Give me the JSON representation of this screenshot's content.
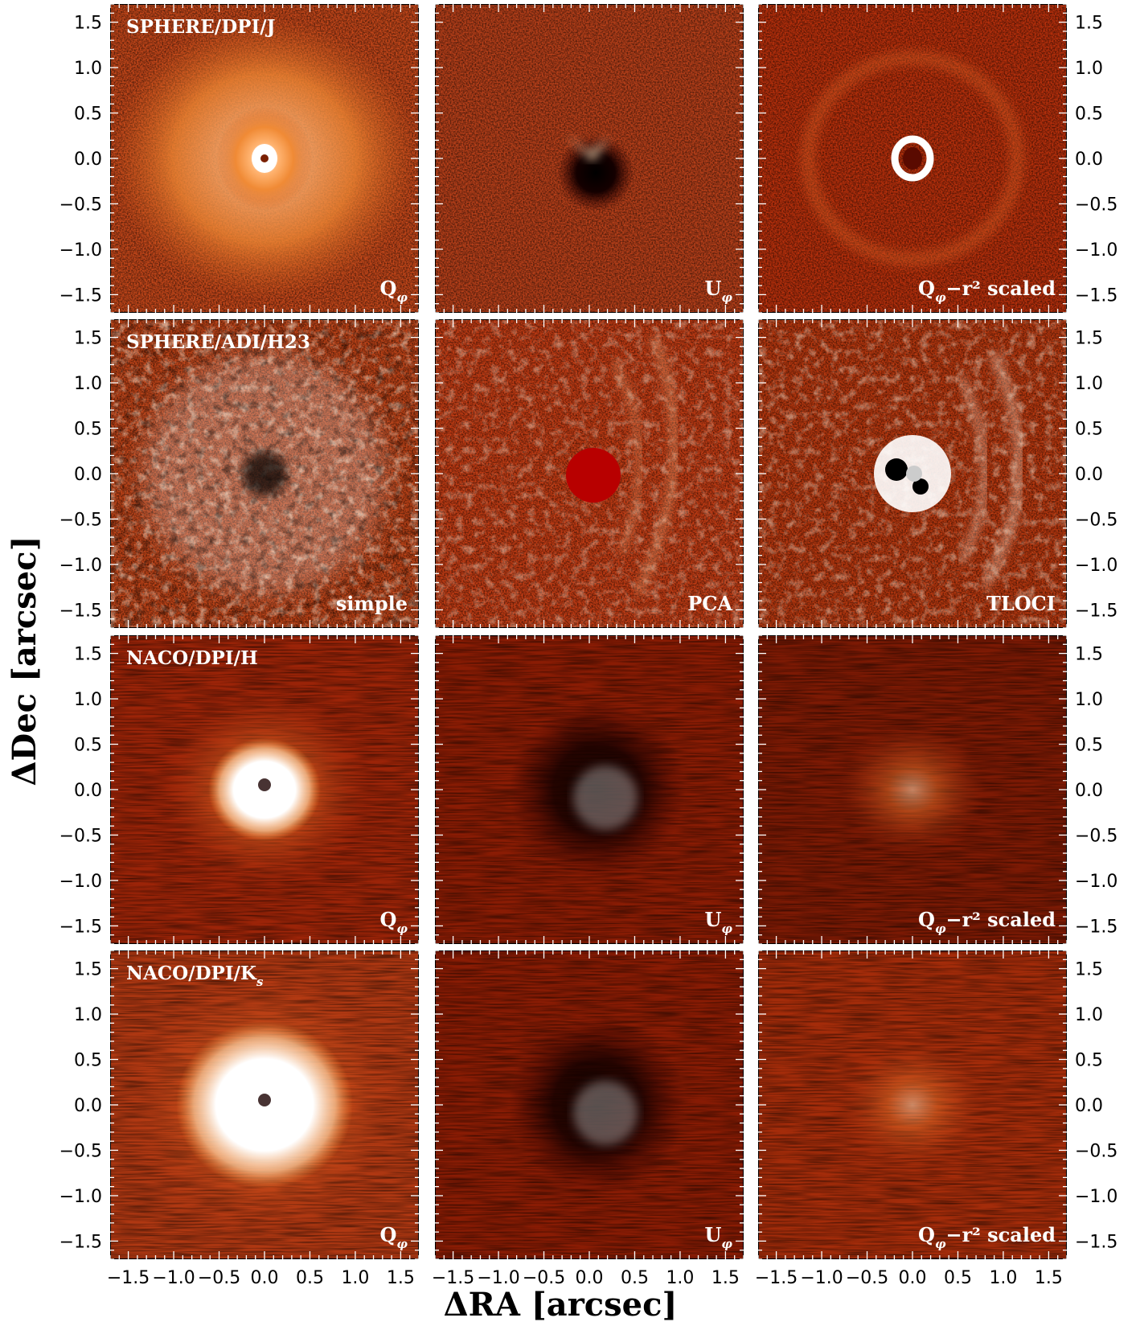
{
  "figure": {
    "xlabel": "ΔRA [arcsec]",
    "ylabel": "ΔDec [arcsec]",
    "colors": {
      "low": "#0a0000",
      "mid": "#b01a00",
      "high": "#ff9a3c",
      "white": "#ffffff"
    }
  },
  "chart_data": {
    "type": "heatmap",
    "grid": {
      "rows": 4,
      "cols": 3
    },
    "xlim": [
      -1.7,
      1.7
    ],
    "ylim": [
      -1.7,
      1.7
    ],
    "x_ticks": [
      "−1.5",
      "−1.0",
      "−0.5",
      "0.0",
      "0.5",
      "1.0",
      "1.5"
    ],
    "x_tick_values": [
      -1.5,
      -1.0,
      -0.5,
      0.0,
      0.5,
      1.0,
      1.5
    ],
    "y_ticks": [
      "1.5",
      "1.0",
      "0.5",
      "0.0",
      "−0.5",
      "−1.0",
      "−1.5"
    ],
    "y_tick_values": [
      1.5,
      1.0,
      0.5,
      0.0,
      -0.5,
      -1.0,
      -1.5
    ],
    "row_titles": [
      "SPHERE/DPI/J",
      "SPHERE/ADI/H23",
      "NACO/DPI/H",
      "NACO/DPI/K"
    ],
    "row_title_subscripts": [
      "",
      "",
      "",
      "s"
    ],
    "panels": [
      {
        "row": 0,
        "col": 0,
        "tag": "Q",
        "tag_sub": "φ",
        "tag_suffix": "",
        "style": "disk-bright"
      },
      {
        "row": 0,
        "col": 1,
        "tag": "U",
        "tag_sub": "φ",
        "tag_suffix": "",
        "style": "u-dark"
      },
      {
        "row": 0,
        "col": 2,
        "tag": "Q",
        "tag_sub": "φ",
        "tag_suffix": "−r² scaled",
        "style": "ring"
      },
      {
        "row": 1,
        "col": 0,
        "tag": "simple",
        "tag_sub": "",
        "tag_suffix": "",
        "style": "adi-speckle"
      },
      {
        "row": 1,
        "col": 1,
        "tag": "PCA",
        "tag_sub": "",
        "tag_suffix": "",
        "style": "pca"
      },
      {
        "row": 1,
        "col": 2,
        "tag": "TLOCI",
        "tag_sub": "",
        "tag_suffix": "",
        "style": "tloci"
      },
      {
        "row": 2,
        "col": 0,
        "tag": "Q",
        "tag_sub": "φ",
        "tag_suffix": "",
        "style": "naco-bright"
      },
      {
        "row": 2,
        "col": 1,
        "tag": "U",
        "tag_sub": "φ",
        "tag_suffix": "",
        "style": "naco-u"
      },
      {
        "row": 2,
        "col": 2,
        "tag": "Q",
        "tag_sub": "φ",
        "tag_suffix": "−r² scaled",
        "style": "naco-faint"
      },
      {
        "row": 3,
        "col": 0,
        "tag": "Q",
        "tag_sub": "φ",
        "tag_suffix": "",
        "style": "naco-bright-ks"
      },
      {
        "row": 3,
        "col": 1,
        "tag": "U",
        "tag_sub": "φ",
        "tag_suffix": "",
        "style": "naco-u"
      },
      {
        "row": 3,
        "col": 2,
        "tag": "Q",
        "tag_sub": "φ",
        "tag_suffix": "−r² scaled",
        "style": "naco-faint-ks"
      }
    ]
  }
}
